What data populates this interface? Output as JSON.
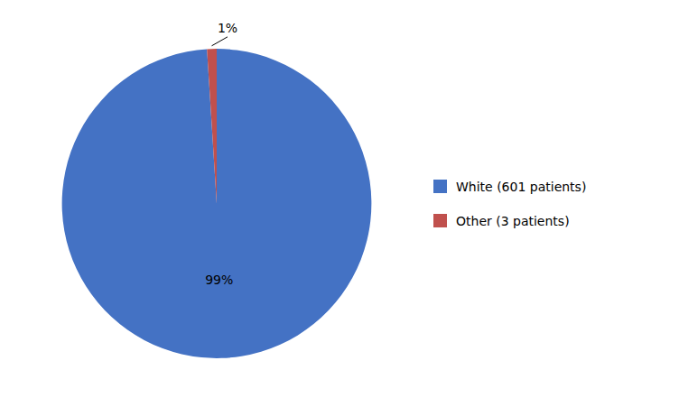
{
  "chart_data": {
    "type": "pie",
    "categories": [
      "White (601 patients)",
      "Other (3 patients)"
    ],
    "values": [
      99,
      1
    ],
    "value_labels": [
      "99%",
      "1%"
    ],
    "colors": [
      "#4472C4",
      "#C0504D"
    ],
    "data_labels": true,
    "legend": "right"
  }
}
